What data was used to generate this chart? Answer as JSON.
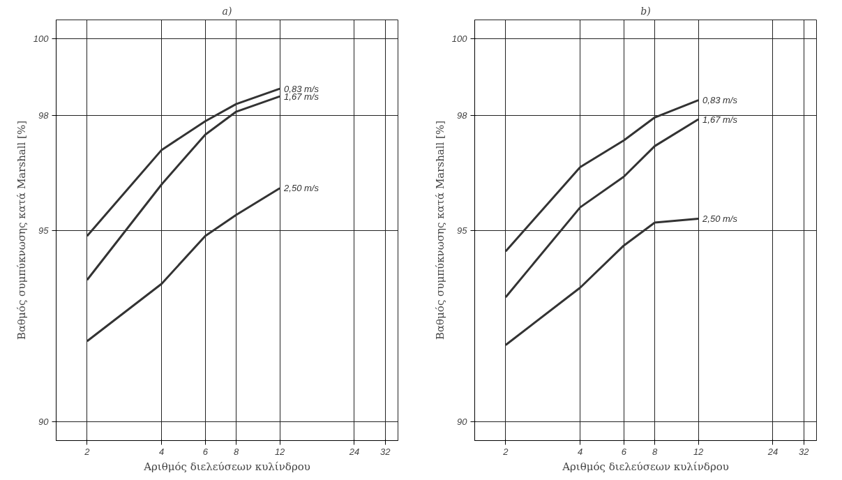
{
  "chart_data": [
    {
      "type": "line",
      "title": "a)",
      "xlabel": "Αριθμός διελεύσεων κυλίνδρου",
      "ylabel": "Βαθμός συμπύκνωσης κατά Marshall [%]",
      "x": [
        2,
        4,
        6,
        8,
        12
      ],
      "log": "x",
      "grid": true,
      "marker": "none",
      "line_style": "solid",
      "xlim": [
        1.5,
        36
      ],
      "xticks": [
        2,
        4,
        6,
        8,
        12,
        24,
        32
      ],
      "ylim": [
        89.5,
        100.5
      ],
      "yticks": [
        90,
        95,
        98,
        100
      ],
      "series": [
        {
          "name": "0,83 m/s",
          "color": "#333333",
          "values": [
            94.85,
            97.1,
            97.85,
            98.3,
            98.7
          ]
        },
        {
          "name": "1,67 m/s",
          "color": "#333333",
          "values": [
            93.7,
            96.2,
            97.5,
            98.1,
            98.5
          ]
        },
        {
          "name": "2,50 m/s",
          "color": "#333333",
          "values": [
            92.1,
            93.6,
            94.85,
            95.4,
            96.1
          ]
        }
      ]
    },
    {
      "type": "line",
      "title": "b)",
      "xlabel": "Αριθμός διελεύσεων κυλίνδρου",
      "ylabel": "Βαθμός συμπύκνωσης κατά Marshall [%]",
      "x": [
        2,
        4,
        6,
        8,
        12
      ],
      "log": "x",
      "grid": true,
      "marker": "none",
      "line_style": "solid",
      "xlim": [
        1.5,
        36
      ],
      "xticks": [
        2,
        4,
        6,
        8,
        12,
        24,
        32
      ],
      "ylim": [
        89.5,
        100.5
      ],
      "yticks": [
        90,
        95,
        98,
        100
      ],
      "series": [
        {
          "name": "0,83 m/s",
          "color": "#333333",
          "values": [
            94.45,
            96.65,
            97.35,
            97.95,
            98.4
          ]
        },
        {
          "name": "1,67 m/s",
          "color": "#333333",
          "values": [
            93.25,
            95.6,
            96.4,
            97.2,
            97.9
          ]
        },
        {
          "name": "2,50 m/s",
          "color": "#333333",
          "values": [
            92.0,
            93.5,
            94.6,
            95.2,
            95.3
          ]
        }
      ]
    }
  ]
}
